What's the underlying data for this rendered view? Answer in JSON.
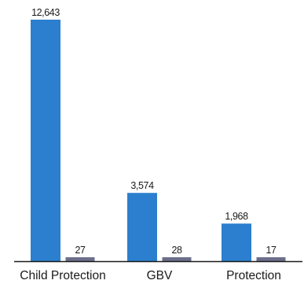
{
  "chart_data": {
    "type": "bar",
    "title": "",
    "xlabel": "",
    "ylabel": "",
    "categories": [
      "Child Protection",
      "GBV",
      "Protection"
    ],
    "series": [
      {
        "values": [
          12643,
          3574,
          1968
        ],
        "labels": [
          "12,643",
          "3,574",
          "1,968"
        ],
        "color": "#2b7fce"
      },
      {
        "values": [
          27,
          28,
          17
        ],
        "labels": [
          "27",
          "28",
          "17"
        ],
        "color": "#6b6f8a"
      }
    ],
    "ylim": [
      0,
      12643
    ],
    "grid": false,
    "legend": "none",
    "axis_color": "#1a1a1a"
  }
}
